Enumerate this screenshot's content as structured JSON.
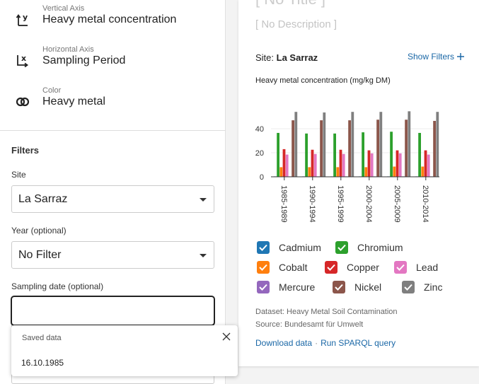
{
  "sidebar": {
    "encodings": [
      {
        "label": "Vertical Axis",
        "value": "Heavy metal concentration",
        "icon": "y-axis-icon"
      },
      {
        "label": "Horizontal Axis",
        "value": "Sampling Period",
        "icon": "x-axis-icon"
      },
      {
        "label": "Color",
        "value": "Heavy metal",
        "icon": "color-rings-icon"
      }
    ],
    "filters": {
      "title": "Filters",
      "site": {
        "label": "Site",
        "value": "La Sarraz"
      },
      "year": {
        "label": "Year (optional)",
        "value": "No Filter"
      },
      "sampling_date": {
        "label": "Sampling date (optional)",
        "value": ""
      }
    },
    "autofill_popup": {
      "title": "Saved data",
      "items": [
        "16.10.1985"
      ]
    }
  },
  "card": {
    "title": "[ No Title ]",
    "description": "[ No Description ]",
    "site_label": "Site:",
    "site_value": "La Sarraz",
    "show_filters": "Show Filters",
    "dataset": "Dataset: Heavy Metal Soil Contamination",
    "source": "Source: Bundesamt für Umwelt",
    "download_link": "Download data",
    "link_separator": "·",
    "sparql_link": "Run SPARQL query"
  },
  "chart_data": {
    "type": "bar",
    "title": "Heavy metal concentration (mg/kg DM)",
    "xlabel": "Sampling Period",
    "ylabel": "Heavy metal concentration (mg/kg DM)",
    "categories": [
      "1985-1989",
      "1990-1994",
      "1995-1999",
      "2000-2004",
      "2005-2009",
      "2010-2014"
    ],
    "yticks": [
      0,
      20,
      40
    ],
    "ylim": [
      0,
      56
    ],
    "grid": true,
    "legend_position": "bottom",
    "series": [
      {
        "name": "Cadmium",
        "color": "#1f77b4",
        "values": [
          0.3,
          0.3,
          0.3,
          0.3,
          0.3,
          0.3
        ]
      },
      {
        "name": "Chromium",
        "color": "#2ca02c",
        "values": [
          36.5,
          36,
          36,
          37,
          37.5,
          36.5
        ]
      },
      {
        "name": "Cobalt",
        "color": "#ff7f0e",
        "values": [
          8,
          8,
          8,
          8,
          8.5,
          8.5
        ]
      },
      {
        "name": "Copper",
        "color": "#d62728",
        "values": [
          23,
          22.5,
          22.5,
          22,
          22,
          22
        ]
      },
      {
        "name": "Lead",
        "color": "#e377c2",
        "values": [
          18.5,
          19,
          19,
          19.5,
          19.5,
          18.5
        ]
      },
      {
        "name": "Mercure",
        "color": "#9467bd",
        "values": [
          0.1,
          0.1,
          0.1,
          0.1,
          0.1,
          0.1
        ]
      },
      {
        "name": "Nickel",
        "color": "#8c564b",
        "values": [
          47,
          47,
          47,
          47.5,
          47.5,
          46.5
        ]
      },
      {
        "name": "Zinc",
        "color": "#7f7f7f",
        "values": [
          54,
          53.5,
          54,
          54,
          54.5,
          54
        ]
      }
    ]
  }
}
